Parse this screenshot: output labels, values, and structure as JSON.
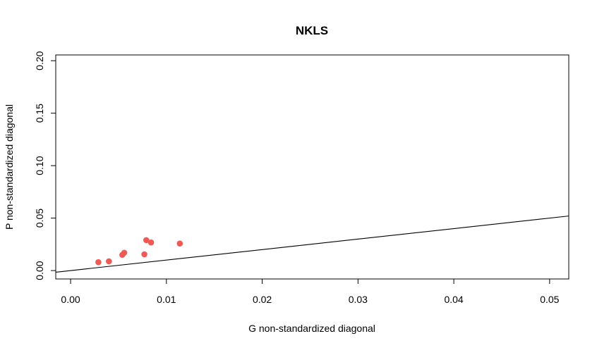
{
  "chart_data": {
    "type": "scatter",
    "title": "NKLS",
    "xlabel": "G non-standardized diagonal",
    "ylabel": "P non-standardized diagonal",
    "xlim": [
      -0.00155,
      0.052
    ],
    "ylim": [
      -0.008,
      0.2055
    ],
    "x_ticks": [
      "0.00",
      "0.01",
      "0.02",
      "0.03",
      "0.04",
      "0.05"
    ],
    "y_ticks": [
      "0.00",
      "0.05",
      "0.10",
      "0.15",
      "0.20"
    ],
    "grid": false,
    "legend": "none",
    "point_color": "#ee5b55",
    "line": {
      "intercept": 0,
      "slope": 1
    },
    "series": [
      {
        "x": [
          0.0029,
          0.004,
          0.0054,
          0.0056,
          0.0077,
          0.0079,
          0.0084,
          0.0114
        ],
        "y": [
          0.008,
          0.0088,
          0.015,
          0.017,
          0.0155,
          0.029,
          0.0268,
          0.0258
        ]
      }
    ]
  }
}
